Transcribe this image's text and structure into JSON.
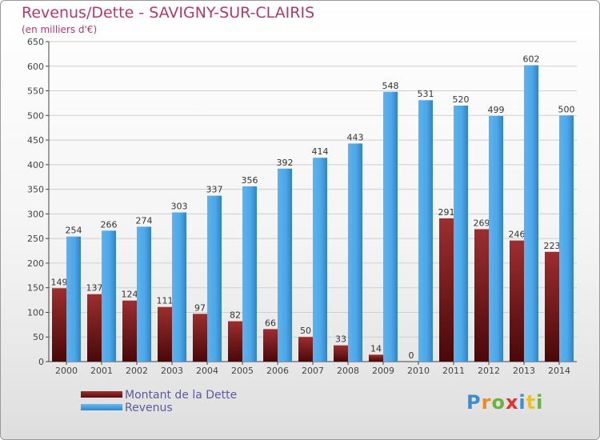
{
  "header": {
    "title": "Revenus/Dette - SAVIGNY-SUR-CLAIRIS",
    "subtitle": "(en milliers d'€)"
  },
  "legend": [
    {
      "label": "Montant de la Dette",
      "color": "#7a1a1a"
    },
    {
      "label": "Revenus",
      "color": "#4ea8e8"
    }
  ],
  "logo": {
    "letters": [
      "P",
      "r",
      "o",
      "x",
      "i",
      "t",
      "i"
    ],
    "colors": [
      "#3a8ed6",
      "#f08a1c",
      "#6bb33a",
      "#e0332f",
      "#3a8ed6",
      "#f0c21c",
      "#6bb33a"
    ]
  },
  "chart_data": {
    "type": "bar",
    "categories": [
      "2000",
      "2001",
      "2002",
      "2003",
      "2004",
      "2005",
      "2006",
      "2007",
      "2008",
      "2009",
      "2010",
      "2011",
      "2012",
      "2013",
      "2014"
    ],
    "series": [
      {
        "name": "Montant de la Dette",
        "color": "#7a1a1a",
        "values": [
          149,
          137,
          124,
          111,
          97,
          82,
          66,
          50,
          33,
          14,
          0,
          291,
          269,
          246,
          223
        ]
      },
      {
        "name": "Revenus",
        "color": "#4ea8e8",
        "values": [
          254,
          266,
          274,
          303,
          337,
          356,
          392,
          414,
          443,
          548,
          531,
          520,
          499,
          602,
          500
        ]
      }
    ],
    "ylim": [
      0,
      650
    ],
    "yticks": [
      "0",
      "50",
      "100",
      "150",
      "200",
      "250",
      "300",
      "350",
      "400",
      "450",
      "500",
      "550",
      "600",
      "650"
    ],
    "grid": true,
    "legend_position": "bottom-left"
  }
}
